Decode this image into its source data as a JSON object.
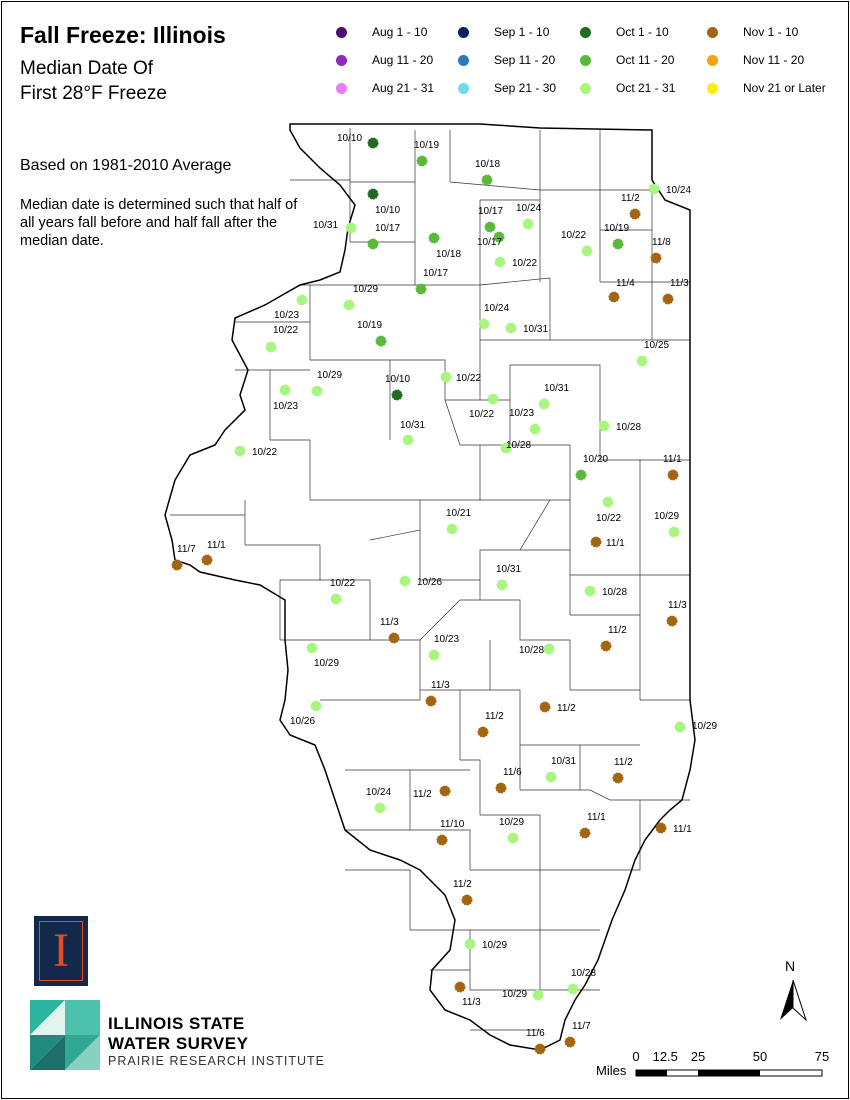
{
  "title": "Fall Freeze: Illinois",
  "subtitle_line1": "Median Date Of",
  "subtitle_line2": "First 28°F Freeze",
  "note_average": "Based on 1981-2010 Average",
  "note_median": "Median date is determined such that half of all years fall before and half fall after the median date.",
  "legend": [
    {
      "label": "Aug 1 - 10",
      "color": "#4b0f6e"
    },
    {
      "label": "Aug 11 - 20",
      "color": "#8a2bc2"
    },
    {
      "label": "Aug 21 - 31",
      "color": "#e67ef0"
    },
    {
      "label": "Sep 1 - 10",
      "color": "#0b1f66"
    },
    {
      "label": "Sep 11 - 20",
      "color": "#2f78bf"
    },
    {
      "label": "Sep 21 - 30",
      "color": "#73d8f2"
    },
    {
      "label": "Oct 1 - 10",
      "color": "#1f6b1f"
    },
    {
      "label": "Oct 11 - 20",
      "color": "#5ab83b"
    },
    {
      "label": "Oct 21 - 31",
      "color": "#a8f57f"
    },
    {
      "label": "Nov 1 - 10",
      "color": "#a3650f"
    },
    {
      "label": "Nov 11 - 20",
      "color": "#f5a30a"
    },
    {
      "label": "Nov 21 or Later",
      "color": "#ffee00"
    }
  ],
  "stations": [
    {
      "date": "10/10",
      "cat": "Oct 1 - 10"
    },
    {
      "date": "10/19",
      "cat": "Oct 11 - 20"
    },
    {
      "date": "10/18",
      "cat": "Oct 11 - 20"
    },
    {
      "date": "10/24",
      "cat": "Oct 21 - 31"
    },
    {
      "date": "10/10",
      "cat": "Oct 1 - 10"
    },
    {
      "date": "10/31",
      "cat": "Oct 21 - 31"
    },
    {
      "date": "10/17",
      "cat": "Oct 11 - 20"
    },
    {
      "date": "10/18",
      "cat": "Oct 11 - 20"
    },
    {
      "date": "10/17",
      "cat": "Oct 11 - 20"
    },
    {
      "date": "10/24",
      "cat": "Oct 21 - 31"
    },
    {
      "date": "10/17",
      "cat": "Oct 11 - 20"
    },
    {
      "date": "10/22",
      "cat": "Oct 21 - 31"
    },
    {
      "date": "10/22",
      "cat": "Oct 21 - 31"
    },
    {
      "date": "11/2",
      "cat": "Nov 1 - 10"
    },
    {
      "date": "10/19",
      "cat": "Oct 11 - 20"
    },
    {
      "date": "11/8",
      "cat": "Nov 1 - 10"
    },
    {
      "date": "10/17",
      "cat": "Oct 11 - 20"
    },
    {
      "date": "10/29",
      "cat": "Oct 21 - 31"
    },
    {
      "date": "10/23",
      "cat": "Oct 21 - 31"
    },
    {
      "date": "11/4",
      "cat": "Nov 1 - 10"
    },
    {
      "date": "11/3",
      "cat": "Nov 1 - 10"
    },
    {
      "date": "10/24",
      "cat": "Oct 21 - 31"
    },
    {
      "date": "10/31",
      "cat": "Oct 21 - 31"
    },
    {
      "date": "10/22",
      "cat": "Oct 21 - 31"
    },
    {
      "date": "10/19",
      "cat": "Oct 11 - 20"
    },
    {
      "date": "10/25",
      "cat": "Oct 21 - 31"
    },
    {
      "date": "10/29",
      "cat": "Oct 21 - 31"
    },
    {
      "date": "10/10",
      "cat": "Oct 1 - 10"
    },
    {
      "date": "10/22",
      "cat": "Oct 21 - 31"
    },
    {
      "date": "10/23",
      "cat": "Oct 21 - 31"
    },
    {
      "date": "10/31",
      "cat": "Oct 21 - 31"
    },
    {
      "date": "10/22",
      "cat": "Oct 21 - 31"
    },
    {
      "date": "10/23",
      "cat": "Oct 21 - 31"
    },
    {
      "date": "10/31",
      "cat": "Oct 21 - 31"
    },
    {
      "date": "10/28",
      "cat": "Oct 21 - 31"
    },
    {
      "date": "10/22",
      "cat": "Oct 21 - 31"
    },
    {
      "date": "10/28",
      "cat": "Oct 21 - 31"
    },
    {
      "date": "10/20",
      "cat": "Oct 11 - 20"
    },
    {
      "date": "11/1",
      "cat": "Nov 1 - 10"
    },
    {
      "date": "10/21",
      "cat": "Oct 21 - 31"
    },
    {
      "date": "10/22",
      "cat": "Oct 21 - 31"
    },
    {
      "date": "10/29",
      "cat": "Oct 21 - 31"
    },
    {
      "date": "11/7",
      "cat": "Nov 1 - 10"
    },
    {
      "date": "11/1",
      "cat": "Nov 1 - 10"
    },
    {
      "date": "11/1",
      "cat": "Nov 1 - 10"
    },
    {
      "date": "10/22",
      "cat": "Oct 21 - 31"
    },
    {
      "date": "10/26",
      "cat": "Oct 21 - 31"
    },
    {
      "date": "10/31",
      "cat": "Oct 21 - 31"
    },
    {
      "date": "10/28",
      "cat": "Oct 21 - 31"
    },
    {
      "date": "11/3",
      "cat": "Nov 1 - 10"
    },
    {
      "date": "11/3",
      "cat": "Nov 1 - 10"
    },
    {
      "date": "10/23",
      "cat": "Oct 21 - 31"
    },
    {
      "date": "11/2",
      "cat": "Nov 1 - 10"
    },
    {
      "date": "10/29",
      "cat": "Oct 21 - 31"
    },
    {
      "date": "10/28",
      "cat": "Oct 21 - 31"
    },
    {
      "date": "11/3",
      "cat": "Nov 1 - 10"
    },
    {
      "date": "11/2",
      "cat": "Nov 1 - 10"
    },
    {
      "date": "10/26",
      "cat": "Oct 21 - 31"
    },
    {
      "date": "11/2",
      "cat": "Nov 1 - 10"
    },
    {
      "date": "10/29",
      "cat": "Oct 21 - 31"
    },
    {
      "date": "11/6",
      "cat": "Nov 1 - 10"
    },
    {
      "date": "10/31",
      "cat": "Oct 21 - 31"
    },
    {
      "date": "11/2",
      "cat": "Nov 1 - 10"
    },
    {
      "date": "10/24",
      "cat": "Oct 21 - 31"
    },
    {
      "date": "11/2",
      "cat": "Nov 1 - 10"
    },
    {
      "date": "11/10",
      "cat": "Nov 1 - 10"
    },
    {
      "date": "10/29",
      "cat": "Oct 21 - 31"
    },
    {
      "date": "11/1",
      "cat": "Nov 1 - 10"
    },
    {
      "date": "11/1",
      "cat": "Nov 1 - 10"
    },
    {
      "date": "11/2",
      "cat": "Nov 1 - 10"
    },
    {
      "date": "10/29",
      "cat": "Oct 21 - 31"
    },
    {
      "date": "11/3",
      "cat": "Nov 1 - 10"
    },
    {
      "date": "10/29",
      "cat": "Oct 21 - 31"
    },
    {
      "date": "10/28",
      "cat": "Oct 21 - 31"
    },
    {
      "date": "11/6",
      "cat": "Nov 1 - 10"
    },
    {
      "date": "11/7",
      "cat": "Nov 1 - 10"
    }
  ],
  "north_label": "N",
  "scale": {
    "unit": "Miles",
    "ticks": [
      "0",
      "12.5",
      "25",
      "50",
      "75"
    ]
  },
  "agency": {
    "line1": "ILLINOIS STATE",
    "line2": "WATER SURVEY",
    "line3": "PRAIRIE RESEARCH INSTITUTE"
  }
}
